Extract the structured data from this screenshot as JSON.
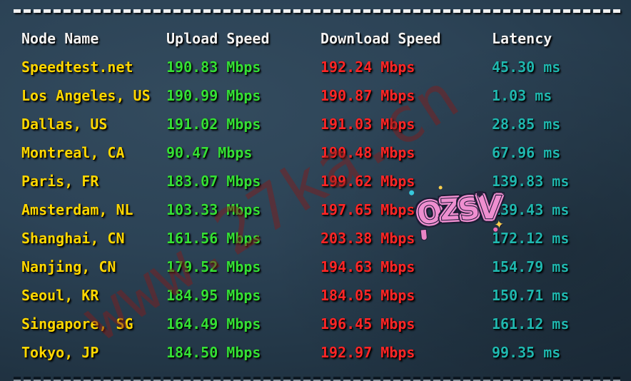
{
  "table": {
    "headers": {
      "node": "Node Name",
      "upload": "Upload Speed",
      "download": "Download Speed",
      "latency": "Latency"
    },
    "rows": [
      {
        "node": "Speedtest.net",
        "upload": "190.83 Mbps",
        "download": "192.24 Mbps",
        "latency": "45.30 ms"
      },
      {
        "node": "Los Angeles, US",
        "upload": "190.99 Mbps",
        "download": "190.87 Mbps",
        "latency": "1.03 ms"
      },
      {
        "node": "Dallas, US",
        "upload": "191.02 Mbps",
        "download": "191.03 Mbps",
        "latency": "28.85 ms"
      },
      {
        "node": "Montreal, CA",
        "upload": "90.47 Mbps",
        "download": "190.48 Mbps",
        "latency": "67.96 ms"
      },
      {
        "node": "Paris, FR",
        "upload": "183.07 Mbps",
        "download": "199.62 Mbps",
        "latency": "139.83 ms"
      },
      {
        "node": "Amsterdam, NL",
        "upload": "103.33 Mbps",
        "download": "197.65 Mbps",
        "latency": "139.43 ms"
      },
      {
        "node": "Shanghai, CN",
        "upload": "161.56 Mbps",
        "download": "203.38 Mbps",
        "latency": "172.12 ms"
      },
      {
        "node": "Nanjing, CN",
        "upload": "179.52 Mbps",
        "download": "194.63 Mbps",
        "latency": "154.79 ms"
      },
      {
        "node": "Seoul, KR",
        "upload": "184.95 Mbps",
        "download": "184.05 Mbps",
        "latency": "150.71 ms"
      },
      {
        "node": "Singapore, SG",
        "upload": "164.49 Mbps",
        "download": "196.45 Mbps",
        "latency": "161.12 ms"
      },
      {
        "node": "Tokyo, JP",
        "upload": "184.50 Mbps",
        "download": "192.97 Mbps",
        "latency": "99.35 ms"
      }
    ]
  },
  "watermark": {
    "text": "www.27ka.cn",
    "color": "#7e1d1d"
  },
  "sticker": {
    "text": "OZSV",
    "letters": [
      {
        "char": "O",
        "color": "#2fc0d6"
      },
      {
        "char": "Z",
        "color": "#f468b5"
      },
      {
        "char": "S",
        "color": "#43d0c0"
      },
      {
        "char": "V",
        "color": "#b98ae8"
      }
    ],
    "outline_color": "#ef8fd0"
  },
  "colors": {
    "header_text": "#f3f3f3",
    "node_name": "#ffd700",
    "upload_speed": "#35e035",
    "download_speed": "#ff2626",
    "latency": "#20b7af",
    "separator": "#f2f2f2",
    "background_light": "#334b5e",
    "background_dark": "#1a2937"
  }
}
